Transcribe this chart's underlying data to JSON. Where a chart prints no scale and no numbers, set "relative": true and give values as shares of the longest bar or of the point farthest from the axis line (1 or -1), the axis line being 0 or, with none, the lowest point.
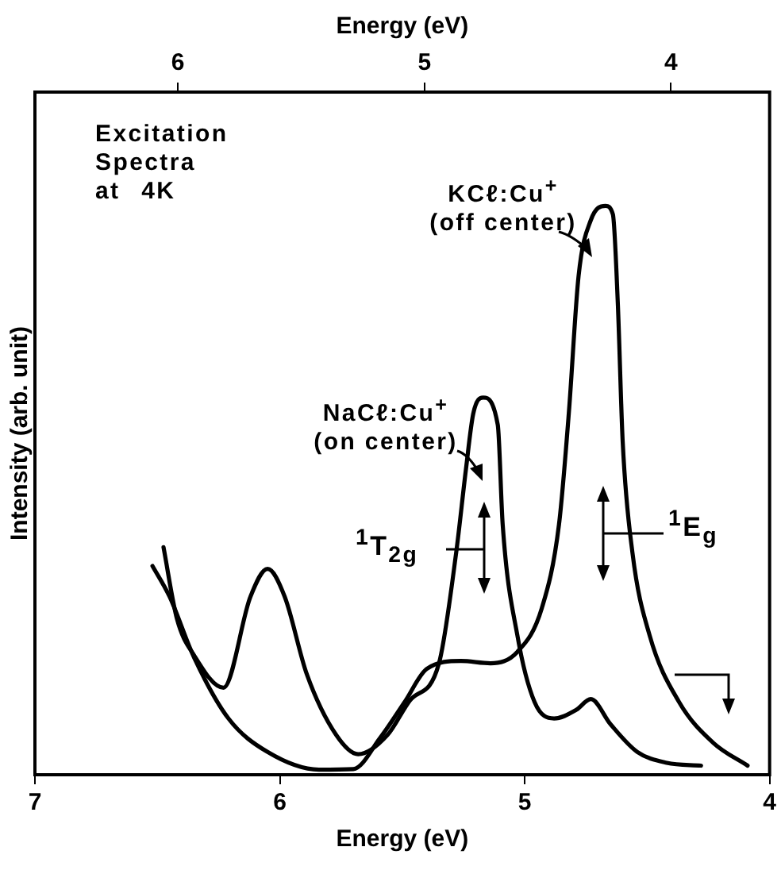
{
  "chart_data": {
    "type": "line",
    "xlabel": "Energy (eV)",
    "ylabel": "Intensity (arb. unit)",
    "x2label": "Energy (eV)",
    "xlim": [
      7,
      4
    ],
    "xticks": [
      7,
      6,
      5,
      4
    ],
    "x2lim": [
      6.58,
      3.6
    ],
    "x2ticks": [
      6,
      5,
      4
    ],
    "relative": true,
    "grid": false,
    "legend": false,
    "marker": "none",
    "line_style": "solid",
    "annotations": [
      "Excitation Spectra at 4K",
      "$^{1}$T$_{2g}$",
      "$^{1}$E$_{g}$"
    ],
    "series": [
      {
        "name": "NaCℓ:Cu$^{+}$ (on center)",
        "color": "#000000",
        "x": [
          6.475,
          6.42,
          6.35,
          6.23,
          6.12,
          6.05,
          5.98,
          5.89,
          5.77,
          5.68,
          5.56,
          5.47,
          5.35,
          5.28,
          5.24,
          5.21,
          5.17,
          5.11,
          5.09,
          5.03,
          4.96,
          4.88,
          4.79,
          4.73,
          4.65,
          4.54,
          4.42,
          4.28
        ],
        "values": [
          0.4,
          0.274,
          0.21,
          0.153,
          0.313,
          0.362,
          0.313,
          0.177,
          0.07,
          0.036,
          0.07,
          0.13,
          0.196,
          0.39,
          0.537,
          0.635,
          0.663,
          0.615,
          0.44,
          0.245,
          0.128,
          0.099,
          0.114,
          0.133,
          0.089,
          0.04,
          0.021,
          0.016
        ]
      },
      {
        "name": "KCℓ:Cu$^{+}$ (off center)",
        "color": "#000000",
        "x": [
          6.52,
          6.45,
          6.35,
          6.21,
          6.05,
          5.84,
          5.7,
          5.59,
          5.49,
          5.4,
          5.26,
          5.14,
          5.03,
          4.93,
          4.86,
          4.82,
          4.78,
          4.73,
          4.67,
          4.64,
          4.62,
          4.6,
          4.56,
          4.49,
          4.37,
          4.23,
          4.09
        ],
        "values": [
          0.367,
          0.313,
          0.206,
          0.099,
          0.04,
          0.009,
          0.01,
          0.065,
          0.128,
          0.186,
          0.2,
          0.196,
          0.216,
          0.293,
          0.44,
          0.635,
          0.877,
          0.975,
          1,
          0.985,
          0.83,
          0.586,
          0.39,
          0.245,
          0.128,
          0.056,
          0.016
        ]
      }
    ]
  }
}
